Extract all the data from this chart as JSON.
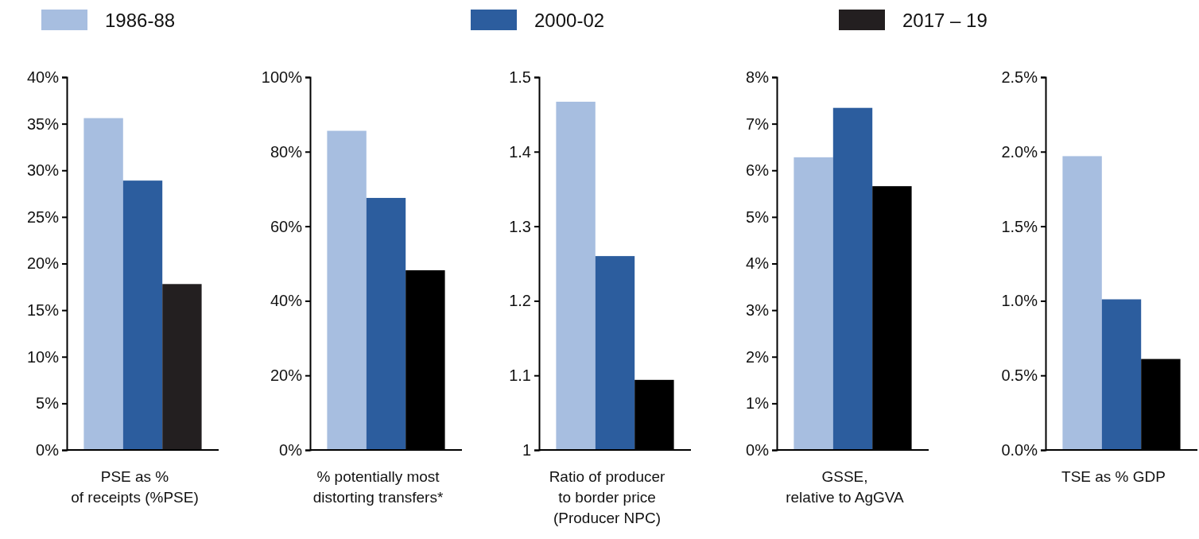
{
  "chart_data": [
    {
      "type": "bar",
      "xlabel": "PSE as %\nof receipts (%PSE)",
      "categories": [
        null
      ],
      "legend": "top",
      "ylim": [
        0,
        40
      ],
      "yticks": [
        {
          "value": 0,
          "label": "0%"
        },
        {
          "value": 5,
          "label": "5%"
        },
        {
          "value": 10,
          "label": "10%"
        },
        {
          "value": 15,
          "label": "15%"
        },
        {
          "value": 20,
          "label": "20%"
        },
        {
          "value": 25,
          "label": "25%"
        },
        {
          "value": 30,
          "label": "30%"
        },
        {
          "value": 35,
          "label": "35%"
        },
        {
          "value": 40,
          "label": "40%"
        }
      ],
      "series": [
        {
          "name": "1986-88",
          "color": "#a7bee0",
          "values": [
            35.6
          ]
        },
        {
          "name": "2000-02",
          "color": "#2c5d9e",
          "values": [
            28.9
          ]
        },
        {
          "name": "2017 – 19",
          "color": "#231f20",
          "values": [
            17.8
          ]
        }
      ]
    },
    {
      "type": "bar",
      "xlabel": "% potentially most\ndistorting transfers*",
      "categories": [
        null
      ],
      "ylim": [
        0,
        100
      ],
      "yticks": [
        {
          "value": 0,
          "label": "0%"
        },
        {
          "value": 20,
          "label": "20%"
        },
        {
          "value": 40,
          "label": "40%"
        },
        {
          "value": 60,
          "label": "60%"
        },
        {
          "value": 80,
          "label": "80%"
        },
        {
          "value": 100,
          "label": "100%"
        }
      ],
      "series": [
        {
          "color": "#a7bee0",
          "values": [
            85.6
          ]
        },
        {
          "color": "#2c5d9e",
          "values": [
            67.6
          ]
        },
        {
          "color": "#000000",
          "values": [
            48.2
          ]
        }
      ]
    },
    {
      "type": "bar",
      "xlabel": "Ratio of producer\nto border price\n(Producer NPC)",
      "categories": [
        null
      ],
      "ylim": [
        1,
        1.5
      ],
      "yticks": [
        1,
        1.1,
        1.2,
        1.3,
        1.4,
        1.5
      ],
      "series": [
        {
          "color": "#a7bee0",
          "values": [
            1.467
          ]
        },
        {
          "color": "#2c5d9e",
          "values": [
            1.26
          ]
        },
        {
          "color": "#000000",
          "values": [
            1.094
          ]
        }
      ]
    },
    {
      "type": "bar",
      "xlabel": "GSSE,\nrelative to AgGVA",
      "categories": [
        null
      ],
      "ylim": [
        0,
        8
      ],
      "yticks": [
        {
          "value": 0,
          "label": "0%"
        },
        {
          "value": 1,
          "label": "1%"
        },
        {
          "value": 2,
          "label": "2%"
        },
        {
          "value": 3,
          "label": "3%"
        },
        {
          "value": 4,
          "label": "4%"
        },
        {
          "value": 5,
          "label": "5%"
        },
        {
          "value": 6,
          "label": "6%"
        },
        {
          "value": 7,
          "label": "7%"
        },
        {
          "value": 8,
          "label": "8%"
        }
      ],
      "series": [
        {
          "color": "#a7bee0",
          "values": [
            6.28
          ]
        },
        {
          "color": "#2c5d9e",
          "values": [
            7.34
          ]
        },
        {
          "color": "#000000",
          "values": [
            5.66
          ]
        }
      ]
    },
    {
      "type": "bar",
      "xlabel": "TSE as % GDP",
      "categories": [
        null
      ],
      "ylim": [
        0,
        2.5
      ],
      "yticks": [
        {
          "value": 0,
          "label": "0.0%"
        },
        {
          "value": 0.5,
          "label": "0.5%"
        },
        {
          "value": 1,
          "label": "1.0%"
        },
        {
          "value": 1.5,
          "label": "1.5%"
        },
        {
          "value": 2,
          "label": "2.0%"
        },
        {
          "value": 2.5,
          "label": "2.5%"
        }
      ],
      "series": [
        {
          "color": "#a7bee0",
          "values": [
            1.97
          ]
        },
        {
          "color": "#2c5d9e",
          "values": [
            1.01
          ]
        },
        {
          "color": "#000000",
          "values": [
            0.61
          ]
        }
      ]
    }
  ]
}
